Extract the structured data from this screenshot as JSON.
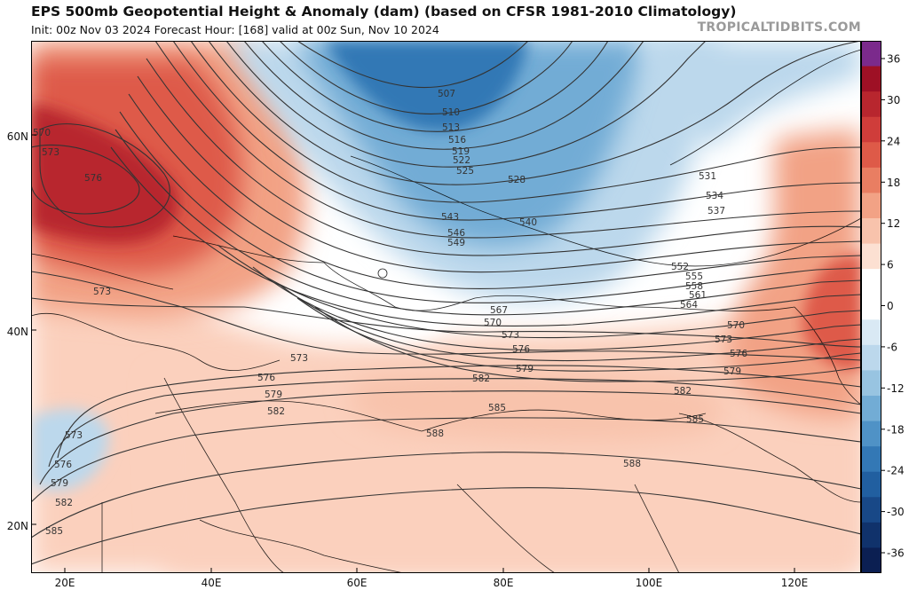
{
  "header": {
    "title": "EPS 500mb Geopotential Height & Anomaly (dam) (based on CFSR 1981-2010 Climatology)",
    "subtitle": "Init: 00z Nov 03 2024   Forecast Hour: [168]   valid at 00z Sun, Nov 10 2024",
    "credit": "TROPICALTIDBITS.COM"
  },
  "map": {
    "lat_labels": [
      "60N",
      "40N",
      "20N"
    ],
    "lon_labels": [
      "20E",
      "40E",
      "60E",
      "80E",
      "100E",
      "120E"
    ],
    "contours": [
      {
        "label": "507"
      },
      {
        "label": "510"
      },
      {
        "label": "513"
      },
      {
        "label": "516"
      },
      {
        "label": "519"
      },
      {
        "label": "522"
      },
      {
        "label": "525"
      },
      {
        "label": "528"
      },
      {
        "label": "531"
      },
      {
        "label": "534"
      },
      {
        "label": "537"
      },
      {
        "label": "540"
      },
      {
        "label": "543"
      },
      {
        "label": "546"
      },
      {
        "label": "549"
      },
      {
        "label": "552"
      },
      {
        "label": "555"
      },
      {
        "label": "558"
      },
      {
        "label": "561"
      },
      {
        "label": "564"
      },
      {
        "label": "567"
      },
      {
        "label": "570"
      },
      {
        "label": "573"
      },
      {
        "label": "576"
      },
      {
        "label": "579"
      },
      {
        "label": "582"
      },
      {
        "label": "585"
      },
      {
        "label": "588"
      }
    ],
    "colors": {
      "strong_positive": "#b2182b",
      "positive": "#e8836b",
      "weak_positive": "#fbd0bd",
      "weak_negative": "#c6dfee",
      "negative": "#5b9fcc",
      "strong_negative": "#1f62a5",
      "contour_line": "#333333",
      "border_line": "#000000"
    }
  },
  "colorbar": {
    "ticks": [
      "36",
      "30",
      "24",
      "18",
      "12",
      "6",
      "0",
      "-6",
      "-12",
      "-18",
      "-24",
      "-30",
      "-36"
    ],
    "levels": [
      {
        "color": "#7b2a8c"
      },
      {
        "color": "#9e1025"
      },
      {
        "color": "#b8262e"
      },
      {
        "color": "#cf3d3a"
      },
      {
        "color": "#de5a48"
      },
      {
        "color": "#e97e62"
      },
      {
        "color": "#f2a285"
      },
      {
        "color": "#f8c3ac"
      },
      {
        "color": "#fce0d2"
      },
      {
        "color": "#ffffff"
      },
      {
        "color": "#ffffff"
      },
      {
        "color": "#d9e9f4"
      },
      {
        "color": "#bcd8ec"
      },
      {
        "color": "#98c4e1"
      },
      {
        "color": "#72acd5"
      },
      {
        "color": "#4f92c6"
      },
      {
        "color": "#3378b5"
      },
      {
        "color": "#215fa0"
      },
      {
        "color": "#184887"
      },
      {
        "color": "#10326b"
      },
      {
        "color": "#0b1f52"
      }
    ]
  }
}
